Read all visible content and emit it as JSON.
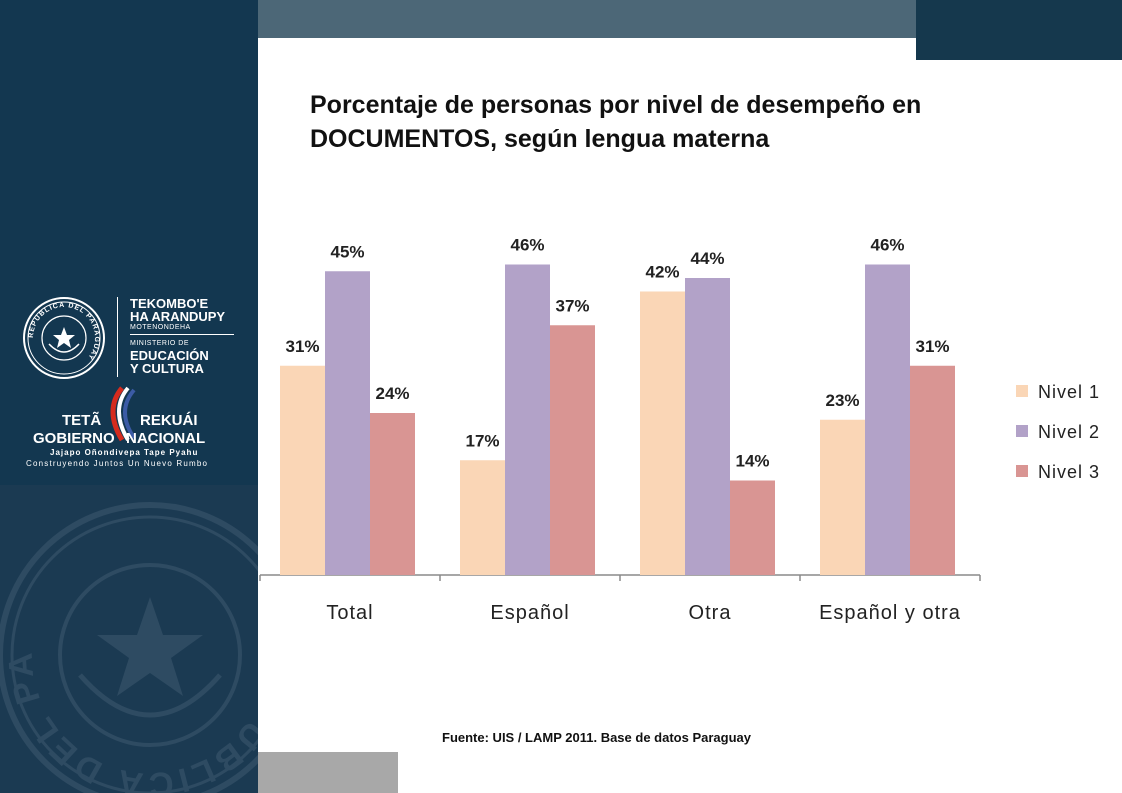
{
  "branding": {
    "ministry_line1": "TEKOMBO'E",
    "ministry_line2": "HA ARANDUPY",
    "ministry_line3": "MOTENONDEHA",
    "ministry_line4": "MINISTERIO DE",
    "ministry_line5": "EDUCACIÓN",
    "ministry_line6": "Y CULTURA",
    "gov_teta": "TETÃ",
    "gov_rekuai": "REKUÁI",
    "gov_gobierno": "GOBIERNO",
    "gov_nacional": "NACIONAL",
    "gov_jajapo": "Jajapo Oñondivepa Tape Pyahu",
    "gov_construyendo": "Construyendo Juntos Un Nuevo Rumbo",
    "seal_text": "REPUBLICA DEL PARAGUAY",
    "watermark_text": "REPUBLICA DEL PARAGUAY"
  },
  "source": "Fuente:  UIS / LAMP 2011. Base de datos Paraguay",
  "colors": {
    "sidebar": "#133750",
    "nivel1": "#fad6b6",
    "nivel2": "#b2a2c8",
    "nivel3": "#d99593"
  },
  "chart_data": {
    "type": "bar",
    "title_line1": "Porcentaje de personas por nivel de desempeño en",
    "title_line2": "DOCUMENTOS, según lengua materna",
    "categories": [
      "Total",
      "Español",
      "Otra",
      "Español y otra"
    ],
    "series": [
      {
        "name": "Nivel 1",
        "values": [
          31,
          17,
          42,
          23
        ],
        "labels": [
          "31%",
          "17%",
          "42%",
          "23%"
        ]
      },
      {
        "name": "Nivel 2",
        "values": [
          45,
          46,
          44,
          46
        ],
        "labels": [
          "45%",
          "46%",
          "44%",
          "46%"
        ]
      },
      {
        "name": "Nivel 3",
        "values": [
          24,
          37,
          14,
          31
        ],
        "labels": [
          "24%",
          "37%",
          "14%",
          "31%"
        ]
      }
    ],
    "ylim": [
      0,
      50
    ],
    "grid": false,
    "legend": "right"
  }
}
